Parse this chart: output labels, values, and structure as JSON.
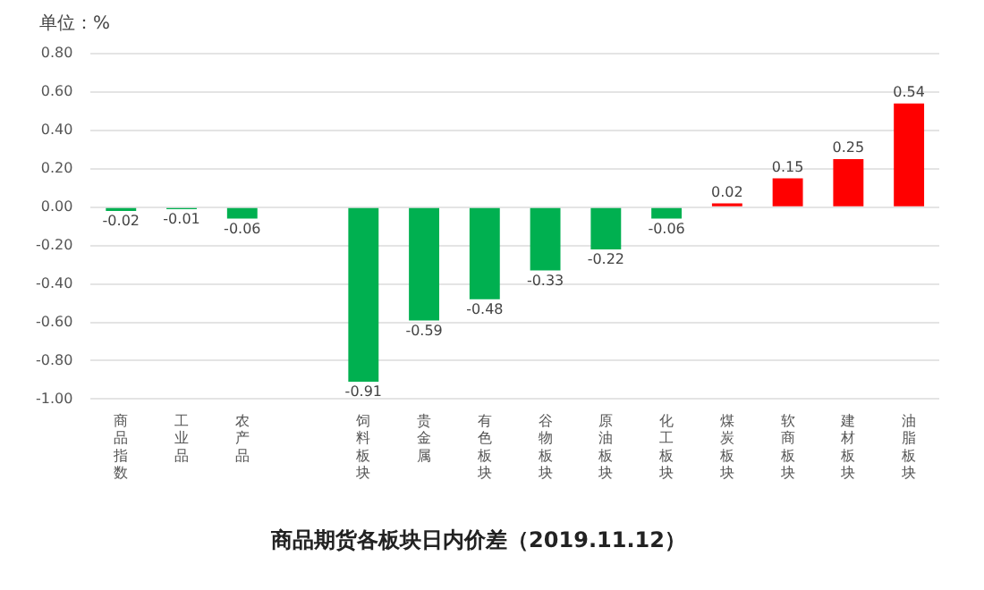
{
  "chart_data": {
    "type": "bar",
    "title": "商品期货各板块日内价差（2019.11.12）",
    "ylabel": "单位：%",
    "categories": [
      "商品指数",
      "工业品",
      "农产品",
      null,
      "饲料板块",
      "贵金属",
      "有色板块",
      "谷物板块",
      "原油板块",
      "化工板块",
      "煤炭板块",
      "软商板块",
      "建材板块",
      "油脂板块"
    ],
    "values": [
      -0.02,
      -0.01,
      -0.06,
      null,
      -0.91,
      -0.59,
      -0.48,
      -0.33,
      -0.22,
      -0.06,
      0.02,
      0.15,
      0.25,
      0.54
    ],
    "colors": [
      "#00b050",
      "#00b050",
      "#00b050",
      "#00b050",
      "#00b050",
      "#00b050",
      "#00b050",
      "#00b050",
      "#00b050",
      "#00b050",
      "#ff0000",
      "#ff0000",
      "#ff0000",
      "#ff0000"
    ],
    "ylim": [
      -1,
      0.8
    ],
    "yticks": [
      {
        "value": -1,
        "label": "-1.00"
      },
      {
        "value": -0.8,
        "label": "-0.80"
      },
      {
        "value": -0.6,
        "label": "-0.60"
      },
      {
        "value": -0.4,
        "label": "-0.40"
      },
      {
        "value": -0.2,
        "label": "-0.20"
      },
      {
        "value": 0,
        "label": "0.00"
      },
      {
        "value": 0.2,
        "label": "0.20"
      },
      {
        "value": 0.4,
        "label": "0.40"
      },
      {
        "value": 0.6,
        "label": "0.60"
      },
      {
        "value": 0.8,
        "label": "0.80"
      }
    ],
    "grid": "y",
    "legend": false,
    "data_labels": true
  }
}
